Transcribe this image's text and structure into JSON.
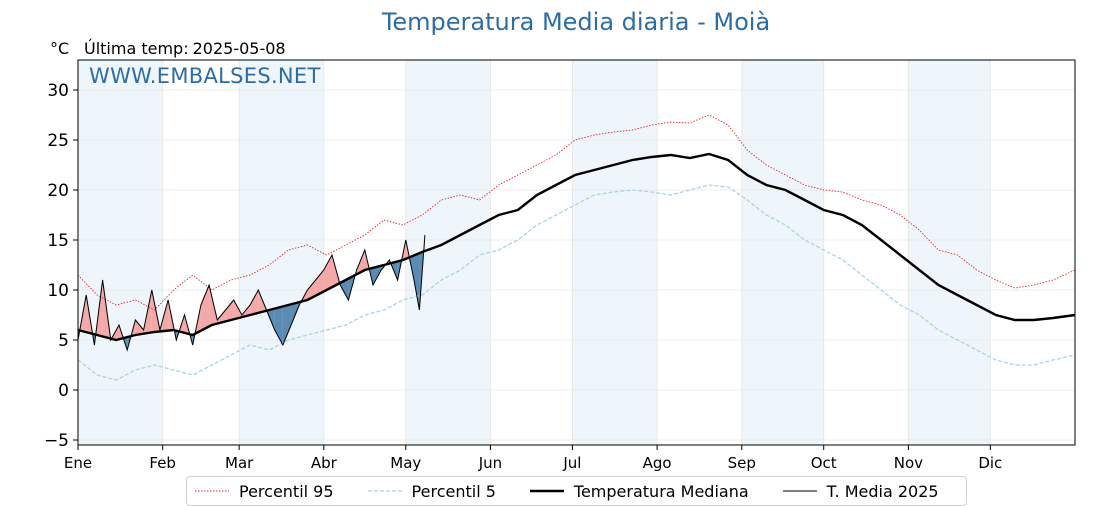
{
  "header": {
    "title": "Temperatura Media diaria - Moià",
    "unit": "°C",
    "last_temp_label": "Última temp:",
    "last_temp_date": "2025-05-08",
    "watermark": "WWW.EMBALSES.NET"
  },
  "colors": {
    "p95": "#e8252a",
    "p5": "#a8d4e4",
    "median": "#000000",
    "t2025": "#000000",
    "above_fill": "#f4a8a8",
    "below_fill": "#5a8bb5",
    "month_band": "#eef5fb",
    "title": "#2e6da4"
  },
  "legend": {
    "p95": "Percentil 95",
    "p5": "Percentil 5",
    "median": "Temperatura Mediana",
    "t2025": "T. Media 2025"
  },
  "chart_data": {
    "type": "line",
    "title": "Temperatura Media diaria - Moià",
    "ylabel": "°C",
    "xlim": [
      1,
      366
    ],
    "ylim": [
      -5.5,
      33
    ],
    "yticks": [
      -5,
      0,
      5,
      10,
      15,
      20,
      25,
      30
    ],
    "months": [
      {
        "label": "Ene",
        "day": 1
      },
      {
        "label": "Feb",
        "day": 32
      },
      {
        "label": "Mar",
        "day": 60
      },
      {
        "label": "Abr",
        "day": 91
      },
      {
        "label": "May",
        "day": 121
      },
      {
        "label": "Jun",
        "day": 152
      },
      {
        "label": "Jul",
        "day": 182
      },
      {
        "label": "Ago",
        "day": 213
      },
      {
        "label": "Sep",
        "day": 244
      },
      {
        "label": "Oct",
        "day": 274
      },
      {
        "label": "Nov",
        "day": 305
      },
      {
        "label": "Dic",
        "day": 335
      }
    ],
    "grid": true,
    "series": [
      {
        "name": "Percentil 95",
        "style": "dotted",
        "x": [
          1,
          8,
          15,
          22,
          29,
          36,
          43,
          50,
          57,
          64,
          71,
          78,
          85,
          92,
          99,
          106,
          113,
          120,
          127,
          134,
          141,
          148,
          155,
          162,
          169,
          176,
          183,
          190,
          197,
          204,
          211,
          218,
          225,
          232,
          239,
          246,
          253,
          260,
          267,
          274,
          281,
          288,
          295,
          302,
          309,
          316,
          323,
          330,
          337,
          344,
          351,
          358,
          366
        ],
        "y": [
          11.5,
          9.5,
          8.5,
          9,
          8,
          10,
          11.5,
          10,
          11,
          11.5,
          12.5,
          14,
          14.5,
          13.5,
          14.5,
          15.5,
          17,
          16.5,
          17.5,
          19,
          19.5,
          19,
          20.5,
          21.5,
          22.5,
          23.5,
          25,
          25.5,
          25.8,
          26,
          26.5,
          26.8,
          26.7,
          27.5,
          26.5,
          24,
          22.5,
          21.5,
          20.5,
          20,
          19.8,
          19,
          18.5,
          17.5,
          16,
          14,
          13.5,
          12,
          11,
          10.2,
          10.5,
          11,
          12
        ]
      },
      {
        "name": "Percentil 5",
        "style": "dashed",
        "x": [
          1,
          8,
          15,
          22,
          29,
          36,
          43,
          50,
          57,
          64,
          71,
          78,
          85,
          92,
          99,
          106,
          113,
          120,
          127,
          134,
          141,
          148,
          155,
          162,
          169,
          176,
          183,
          190,
          197,
          204,
          211,
          218,
          225,
          232,
          239,
          246,
          253,
          260,
          267,
          274,
          281,
          288,
          295,
          302,
          309,
          316,
          323,
          330,
          337,
          344,
          351,
          358,
          366
        ],
        "y": [
          3,
          1.5,
          1,
          2,
          2.5,
          2,
          1.5,
          2.5,
          3.5,
          4.5,
          4,
          5,
          5.5,
          6,
          6.5,
          7.5,
          8,
          9,
          9.5,
          11,
          12,
          13.5,
          14,
          15,
          16.5,
          17.5,
          18.5,
          19.5,
          19.8,
          20,
          19.8,
          19.5,
          20,
          20.5,
          20.3,
          19,
          17.5,
          16.5,
          15,
          14,
          13,
          11.5,
          10,
          8.5,
          7.5,
          6,
          5,
          4,
          3,
          2.5,
          2.5,
          3,
          3.5
        ]
      },
      {
        "name": "Temperatura Mediana",
        "style": "solid-bold",
        "x": [
          1,
          8,
          15,
          22,
          29,
          36,
          43,
          50,
          57,
          64,
          71,
          78,
          85,
          92,
          99,
          106,
          113,
          120,
          127,
          134,
          141,
          148,
          155,
          162,
          169,
          176,
          183,
          190,
          197,
          204,
          211,
          218,
          225,
          232,
          239,
          246,
          253,
          260,
          267,
          274,
          281,
          288,
          295,
          302,
          309,
          316,
          323,
          330,
          337,
          344,
          351,
          358,
          366
        ],
        "y": [
          6,
          5.5,
          5,
          5.5,
          5.8,
          6,
          5.5,
          6.5,
          7,
          7.5,
          8,
          8.5,
          9,
          10,
          11,
          12,
          12.5,
          13,
          13.8,
          14.5,
          15.5,
          16.5,
          17.5,
          18,
          19.5,
          20.5,
          21.5,
          22,
          22.5,
          23,
          23.3,
          23.5,
          23.2,
          23.6,
          23,
          21.5,
          20.5,
          20,
          19,
          18,
          17.5,
          16.5,
          15,
          13.5,
          12,
          10.5,
          9.5,
          8.5,
          7.5,
          7,
          7,
          7.2,
          7.5
        ]
      },
      {
        "name": "T. Media 2025",
        "style": "solid-thin",
        "x": [
          1,
          4,
          7,
          10,
          13,
          16,
          19,
          22,
          25,
          28,
          31,
          34,
          37,
          40,
          43,
          46,
          49,
          52,
          55,
          58,
          61,
          64,
          67,
          70,
          73,
          76,
          79,
          82,
          85,
          88,
          91,
          94,
          97,
          100,
          103,
          106,
          109,
          112,
          115,
          118,
          121,
          124,
          126,
          128
        ],
        "y": [
          5,
          9.5,
          4.5,
          11,
          5,
          6.5,
          4,
          7,
          6,
          10,
          6,
          9,
          5,
          7.5,
          4.5,
          8.5,
          10.5,
          7,
          8,
          9,
          7.5,
          8.5,
          10,
          8,
          6,
          4.5,
          6.5,
          8.5,
          10,
          11,
          12,
          13.5,
          10.5,
          9,
          12,
          14,
          10.5,
          12,
          13,
          11,
          15,
          11,
          8,
          15.5
        ]
      }
    ]
  }
}
